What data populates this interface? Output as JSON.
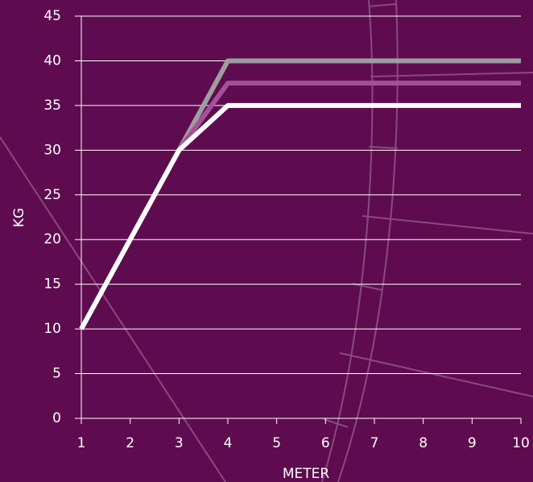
{
  "chart_data": {
    "type": "line",
    "x_label": "METER",
    "y_label": "KG",
    "x": [
      1,
      3,
      4,
      10
    ],
    "series": [
      {
        "color": "#9e9e9e",
        "values": [
          10,
          30,
          40,
          40
        ]
      },
      {
        "color": "#a5509a",
        "values": [
          10,
          30,
          37.5,
          37.5
        ]
      },
      {
        "color": "#ffffff",
        "values": [
          10,
          30,
          35,
          35
        ]
      }
    ],
    "xlim": [
      1,
      10
    ],
    "xticks": [
      1,
      2,
      3,
      4,
      5,
      6,
      7,
      8,
      9,
      10
    ],
    "ylim": [
      0,
      45
    ],
    "yticks": [
      0,
      5,
      10,
      15,
      20,
      25,
      30,
      35,
      40,
      45
    ],
    "grid": true
  }
}
